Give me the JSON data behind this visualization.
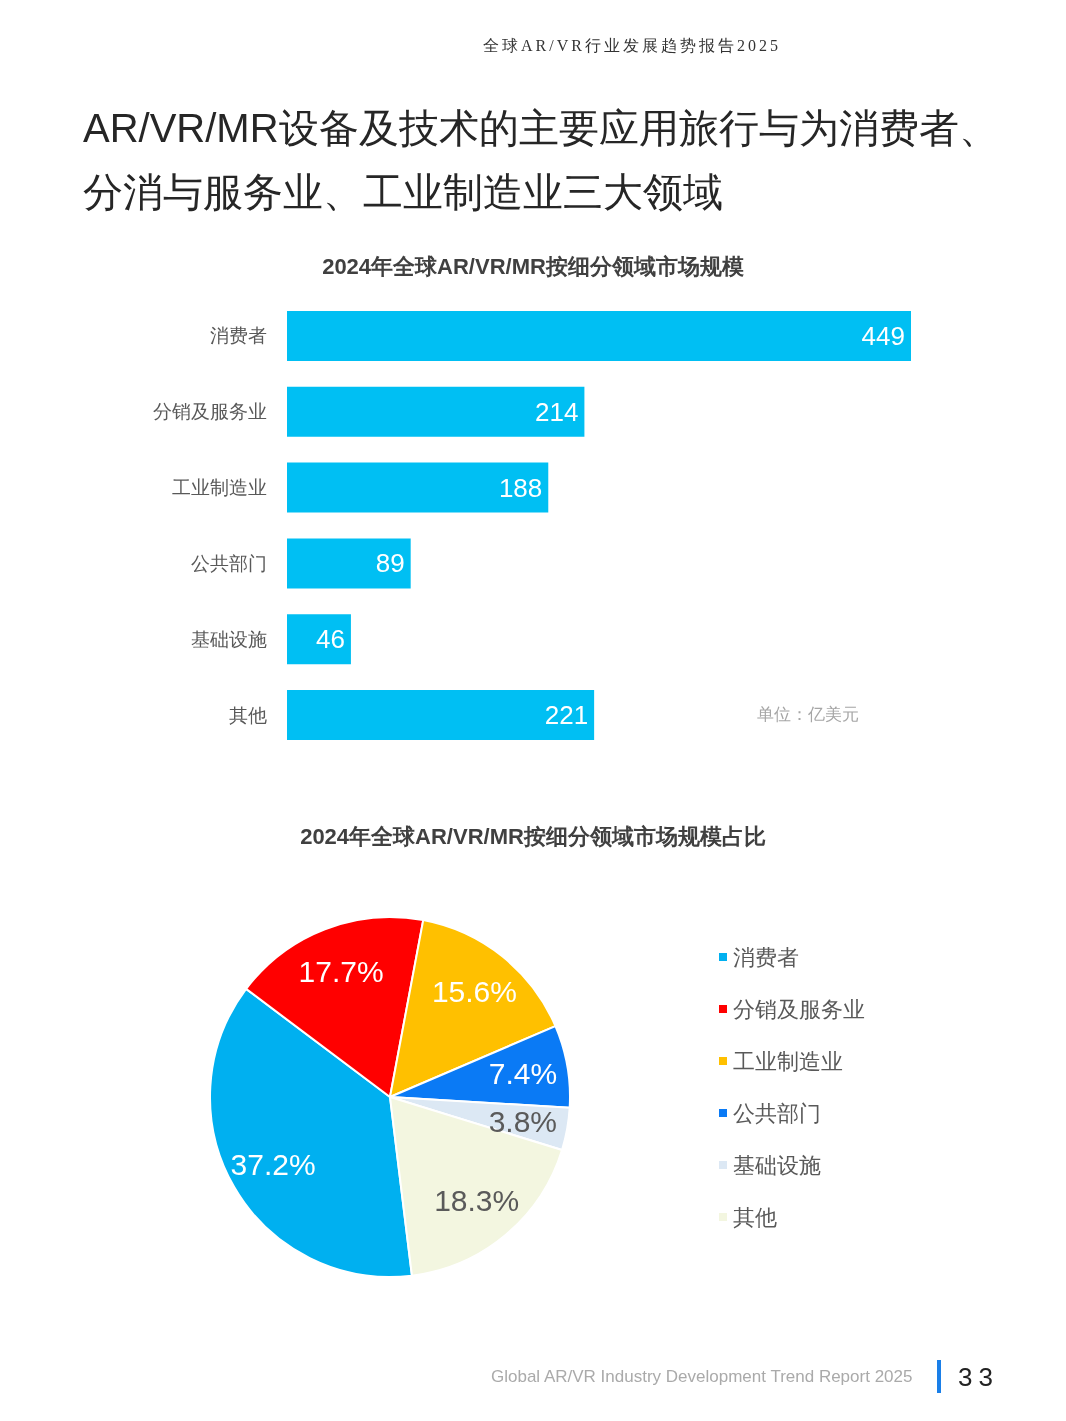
{
  "chart_data": [
    {
      "type": "other",
      "title": "AR/VR/MR设备及技术的主要应用旅行与为消费者、分消与服务业、工业制造业三大领域",
      "annotations": [
        "全球AR/VR行业发展趋势报告2025",
        "Global AR/VR Industry Development Trend Report 2025",
        "33"
      ]
    },
    {
      "type": "bar",
      "title": "2024年全球AR/VR/MR按细分领域市场规模",
      "orientation": "horizontal",
      "categories": [
        "消费者",
        "分销及服务业",
        "工业制造业",
        "公共部门",
        "基础设施",
        "其他"
      ],
      "values": [
        449,
        214,
        188,
        89,
        46,
        221
      ],
      "color": "#00bff3",
      "data_labels": true,
      "tick_labels": "y",
      "annotations": [
        "单位：亿美元"
      ]
    },
    {
      "type": "pie",
      "title": "2024年全球AR/VR/MR按细分领域市场规模占比",
      "categories": [
        "消费者",
        "分销及服务业",
        "工业制造业",
        "公共部门",
        "基础设施",
        "其他"
      ],
      "values": [
        37.2,
        17.7,
        15.6,
        7.4,
        3.8,
        18.3
      ],
      "colors": [
        "#00b0f0",
        "#ff0000",
        "#ffc000",
        "#0a7af5",
        "#dce8f4",
        "#f3f6e0"
      ],
      "value_labels": [
        "37.2%",
        "17.7%",
        "15.6%",
        "7.4%",
        "3.8%",
        "18.3%"
      ],
      "legend": "right"
    }
  ]
}
